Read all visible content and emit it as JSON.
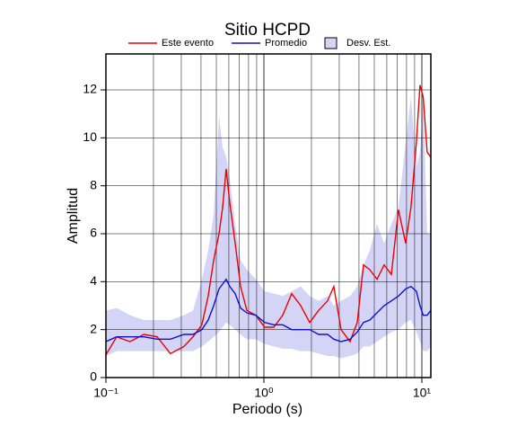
{
  "chart_data": {
    "type": "line",
    "title": "Sitio HCPD",
    "xlabel": "Periodo (s)",
    "ylabel": "Amplitud",
    "xscale": "log",
    "grid": true,
    "xlim": [
      0.1,
      11.4
    ],
    "ylim": [
      0,
      13.5
    ],
    "xticks": [
      {
        "value": 0.1,
        "label": "10⁻¹"
      },
      {
        "value": 1,
        "label": "10⁰"
      },
      {
        "value": 10,
        "label": "10¹"
      }
    ],
    "x_minor_ticks": [
      0.2,
      0.3,
      0.4,
      0.5,
      0.6,
      0.7,
      0.8,
      0.9,
      2,
      3,
      4,
      5,
      6,
      7,
      8,
      9
    ],
    "yticks": [
      0,
      2,
      4,
      6,
      8,
      10,
      12
    ],
    "x": [
      0.1,
      0.117,
      0.142,
      0.174,
      0.211,
      0.256,
      0.312,
      0.356,
      0.405,
      0.444,
      0.481,
      0.52,
      0.548,
      0.577,
      0.608,
      0.658,
      0.712,
      0.78,
      0.889,
      1.01,
      1.155,
      1.316,
      1.5,
      1.71,
      1.95,
      2.22,
      2.53,
      2.77,
      3.08,
      3.51,
      3.9,
      4.27,
      4.68,
      5.2,
      5.77,
      6.41,
      7.11,
      7.9,
      8.53,
      9.23,
      9.73,
      10.2,
      10.8,
      11.4
    ],
    "band": {
      "name": "Desv. Est.",
      "color": "#d4d4f7",
      "upper": [
        2.8,
        2.9,
        2.6,
        2.4,
        2.4,
        2.4,
        2.6,
        2.8,
        4.1,
        5.3,
        6.8,
        10.9,
        9.6,
        9.2,
        8.3,
        6.4,
        4.9,
        4.5,
        4.1,
        3.6,
        3.5,
        3.4,
        3.6,
        3.8,
        3.4,
        3.2,
        3.4,
        3.0,
        3.2,
        3.4,
        3.8,
        4.7,
        5.3,
        6.4,
        5.6,
        6.4,
        7.1,
        9.8,
        11.7,
        8.8,
        9.4,
        11.7,
        6.0,
        6.0
      ],
      "lower": [
        0.9,
        1.1,
        1.1,
        1.1,
        1.1,
        1.1,
        1.1,
        1.1,
        1.3,
        1.5,
        1.7,
        1.9,
        2.1,
        2.3,
        2.2,
        2.0,
        1.8,
        1.6,
        1.6,
        1.4,
        1.3,
        1.2,
        1.2,
        1.1,
        1.1,
        1.0,
        0.9,
        0.9,
        0.8,
        0.9,
        1.0,
        1.3,
        1.3,
        1.5,
        1.7,
        1.9,
        2.0,
        2.3,
        2.4,
        1.9,
        1.5,
        1.1,
        1.1,
        1.3
      ]
    },
    "series": [
      {
        "name": "Este evento",
        "color": "#ee0000",
        "values": [
          0.95,
          1.7,
          1.5,
          1.8,
          1.7,
          1.0,
          1.3,
          1.7,
          2.2,
          3.4,
          4.9,
          6.0,
          7.1,
          8.7,
          7.3,
          5.6,
          3.8,
          2.8,
          2.6,
          2.1,
          2.1,
          2.6,
          3.5,
          3.0,
          2.3,
          2.8,
          3.2,
          3.8,
          2.0,
          1.5,
          2.3,
          4.7,
          4.5,
          4.1,
          4.7,
          4.3,
          7.0,
          5.6,
          7.1,
          9.8,
          12.2,
          11.7,
          9.4,
          9.2
        ]
      },
      {
        "name": "Promedio",
        "color": "#1010cc",
        "values": [
          1.5,
          1.7,
          1.7,
          1.7,
          1.6,
          1.6,
          1.8,
          1.8,
          2.0,
          2.4,
          3.0,
          3.7,
          3.9,
          4.1,
          3.8,
          3.5,
          2.9,
          2.7,
          2.6,
          2.3,
          2.2,
          2.2,
          2.0,
          2.0,
          2.0,
          1.8,
          1.8,
          1.6,
          1.5,
          1.6,
          1.9,
          2.3,
          2.4,
          2.7,
          3.0,
          3.2,
          3.4,
          3.7,
          3.8,
          3.6,
          3.0,
          2.6,
          2.6,
          2.8
        ]
      }
    ]
  }
}
